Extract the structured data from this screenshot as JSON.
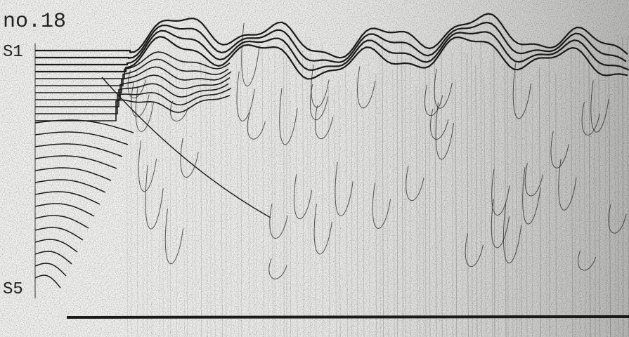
{
  "record": {
    "label": "no.18",
    "markers": [
      "S1",
      "S5"
    ]
  }
}
